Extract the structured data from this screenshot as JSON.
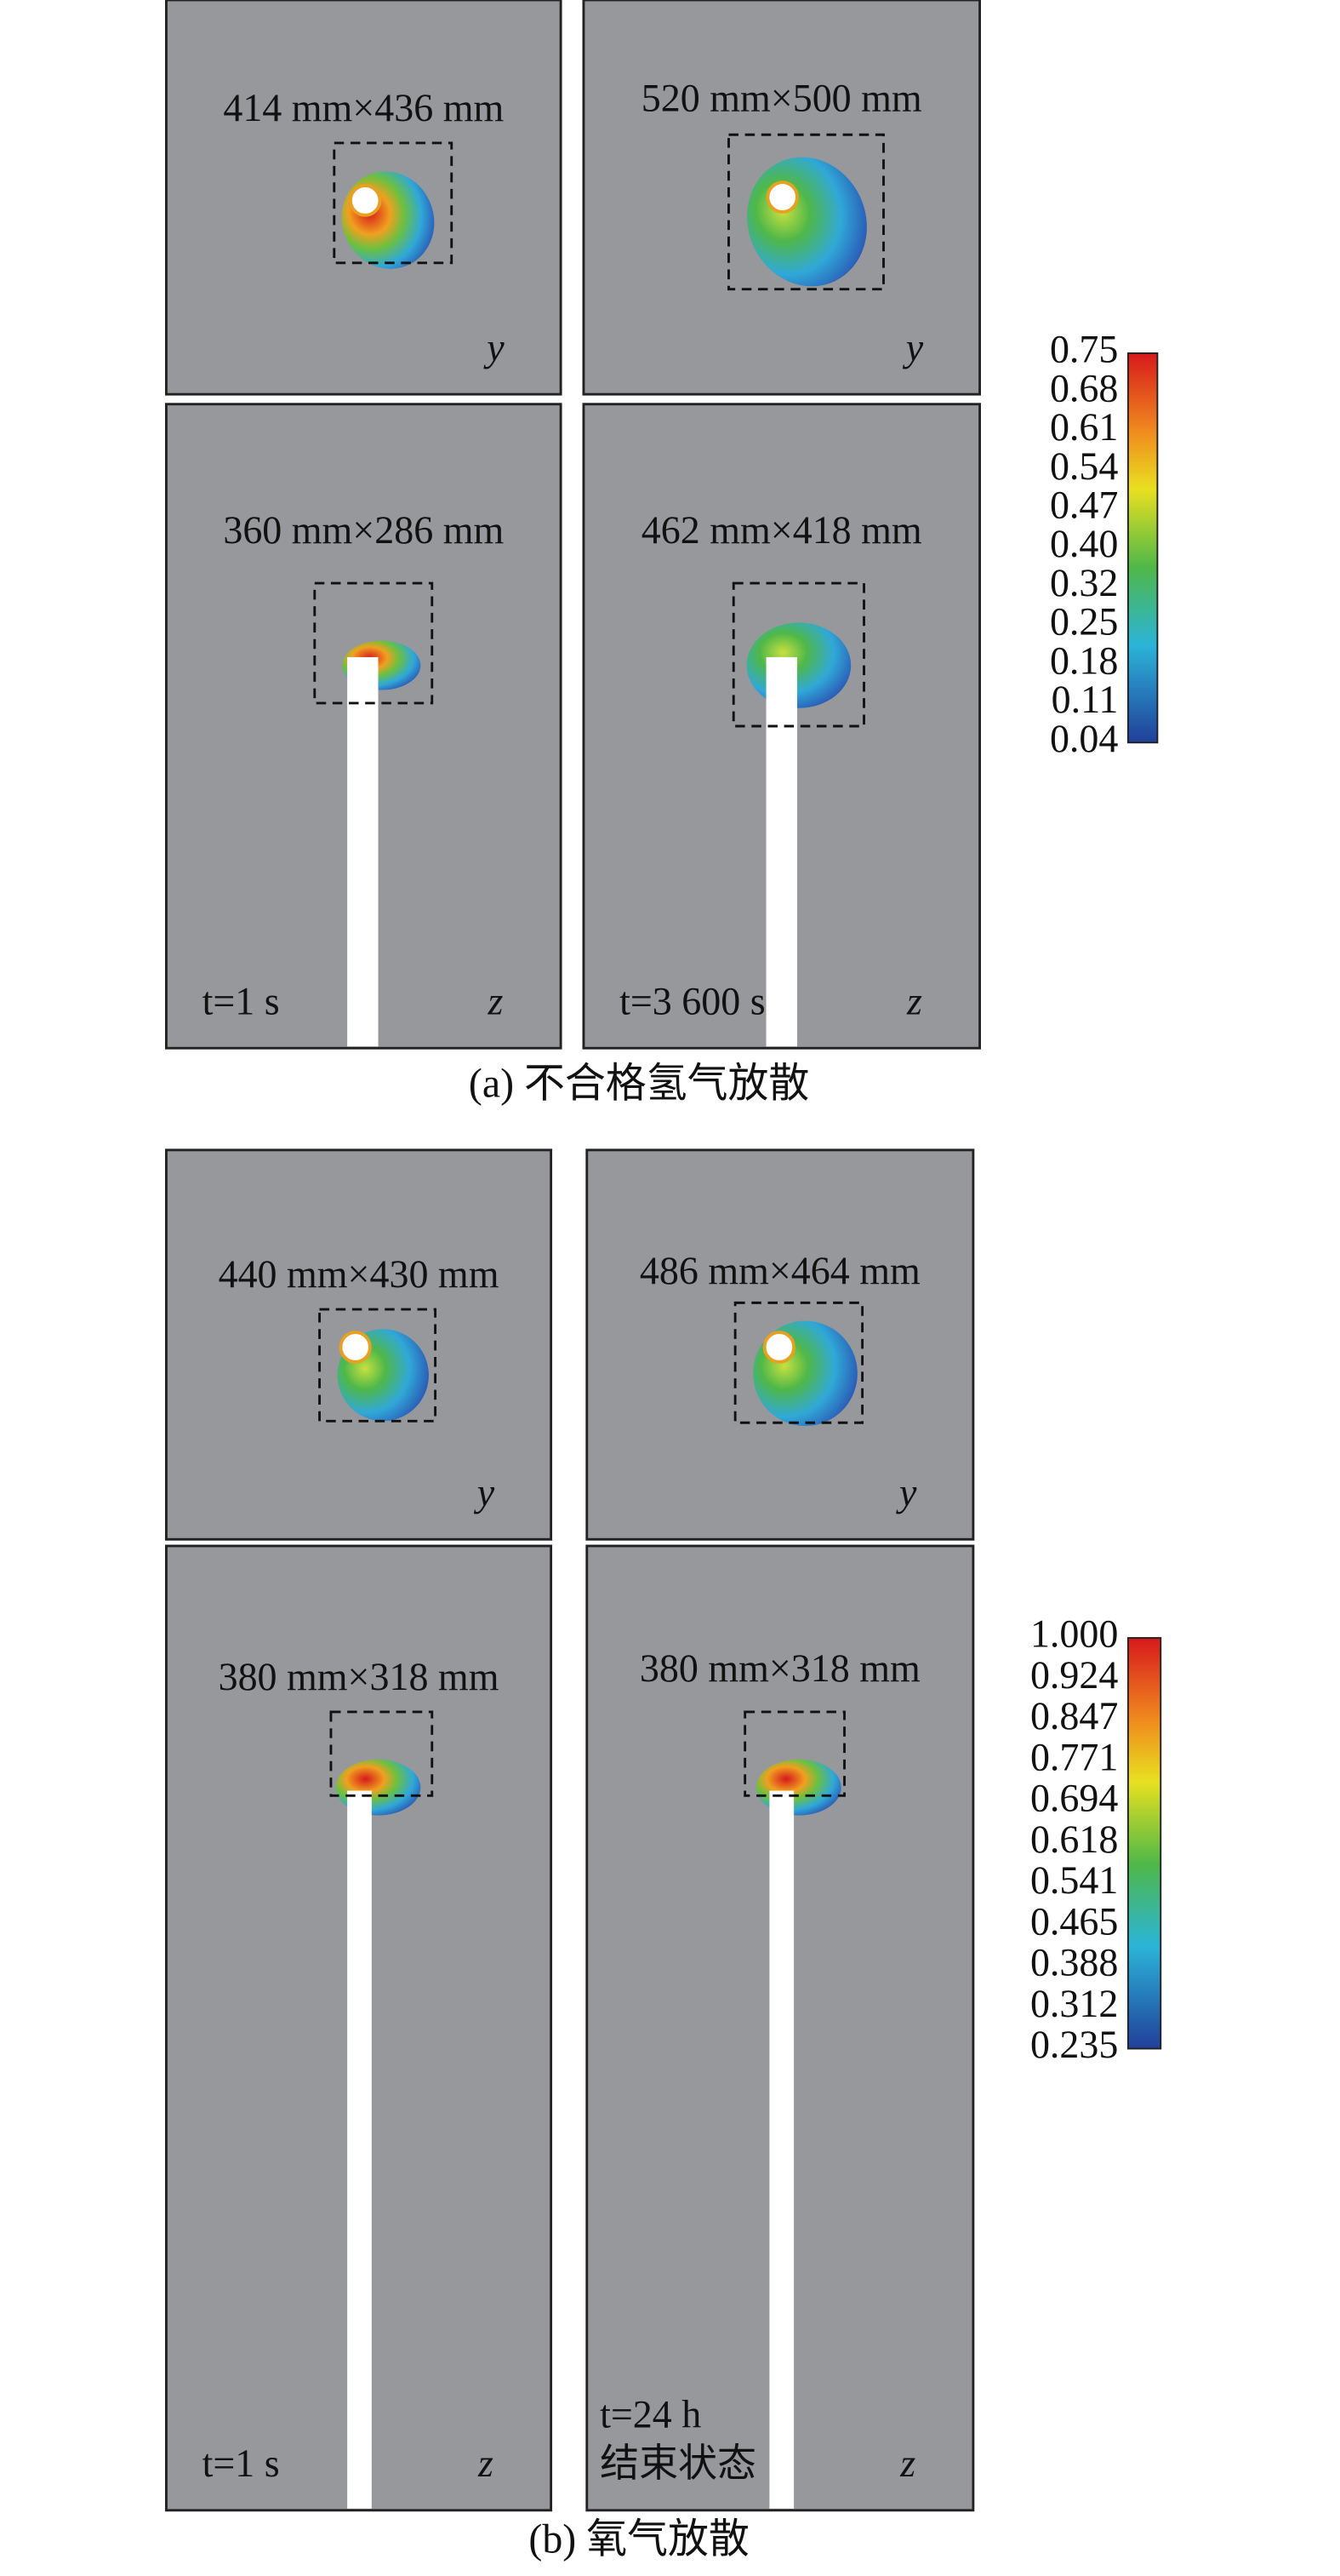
{
  "figures": [
    {
      "caption": "(a) 不合格氢气放散",
      "colorbar": [
        "0.75",
        "0.68",
        "0.61",
        "0.54",
        "0.47",
        "0.40",
        "0.32",
        "0.25",
        "0.18",
        "0.11",
        "0.04"
      ],
      "panels": [
        {
          "size": "414 mm×436 mm",
          "axis": "y"
        },
        {
          "size": "520 mm×500 mm",
          "axis": "y"
        },
        {
          "size": "360 mm×286 mm",
          "axis": "z",
          "time": [
            "t=1 s"
          ]
        },
        {
          "size": "462 mm×418 mm",
          "axis": "z",
          "time": [
            "t=3 600 s"
          ]
        }
      ]
    },
    {
      "caption": "(b) 氧气放散",
      "colorbar": [
        "1.000",
        "0.924",
        "0.847",
        "0.771",
        "0.694",
        "0.618",
        "0.541",
        "0.465",
        "0.388",
        "0.312",
        "0.235"
      ],
      "panels": [
        {
          "size": "440 mm×430 mm",
          "axis": "y"
        },
        {
          "size": "486 mm×464 mm",
          "axis": "y"
        },
        {
          "size": "380 mm×318 mm",
          "axis": "z",
          "time": [
            "t=1 s"
          ]
        },
        {
          "size": "380 mm×318 mm",
          "axis": "z",
          "time": [
            "t=24 h",
            "结束状态"
          ]
        }
      ]
    }
  ]
}
